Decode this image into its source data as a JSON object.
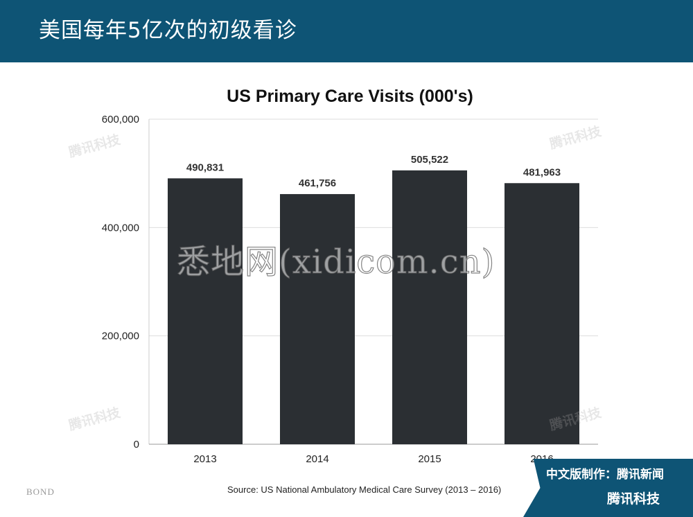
{
  "header": {
    "title": "美国每年5亿次的初级看诊"
  },
  "chart_data": {
    "type": "bar",
    "title": "US Primary Care Visits (000's)",
    "categories": [
      "2013",
      "2014",
      "2015",
      "2016"
    ],
    "values": [
      490831,
      461756,
      505522,
      481963
    ],
    "data_labels": [
      "490,831",
      "461,756",
      "505,522",
      "481,963"
    ],
    "yticks": [
      "0",
      "200,000",
      "400,000",
      "600,000"
    ],
    "ylim": [
      0,
      600000
    ],
    "grid": true,
    "legend": "none",
    "bar_color": "#2b2f33",
    "xlabel": "",
    "ylabel": ""
  },
  "source": "Source: US National Ambulatory Medical Care Survey (2013 – 2016)",
  "footer": {
    "bond": "BOND",
    "watermark": "悉地网(xidicom.cn)",
    "tencent_mark": "腾讯科技",
    "badge_line1": "中文版制作：腾讯新闻",
    "badge_line2": "腾讯科技"
  },
  "colors": {
    "header_bg": "#0e5475",
    "badge_bg": "#0e5475"
  }
}
